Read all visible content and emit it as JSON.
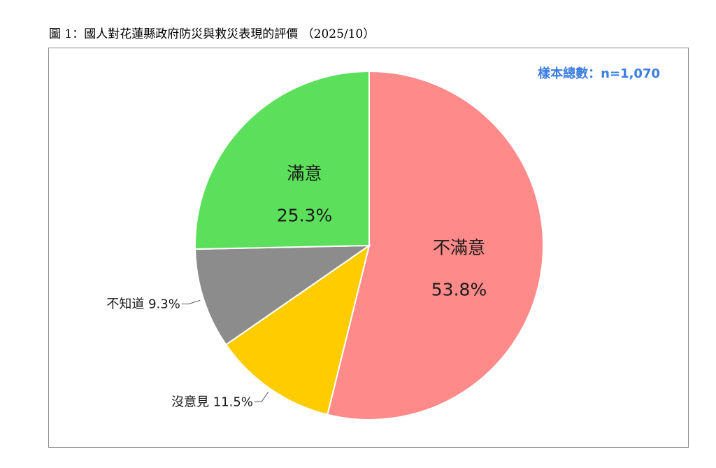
{
  "figure": {
    "title": "圖 1：國人對花蓮縣政府防災與救災表現的評價 （2025/10）",
    "sample_note": "樣本總數：n=1,070"
  },
  "colors": {
    "dissatisfied": "#ff8a8a",
    "no_opinion": "#ffcc00",
    "dont_know": "#8c8c8c",
    "satisfied": "#5ce05c",
    "sample_text": "#3b7de0"
  },
  "chart_data": {
    "type": "pie",
    "title": "",
    "slices": [
      {
        "label": "不滿意",
        "value": 53.8,
        "value_text": "53.8%",
        "color": "#ff8a8a",
        "label_style": "inside"
      },
      {
        "label": "沒意見",
        "value": 11.5,
        "value_text": "11.5%",
        "color": "#ffcc00",
        "label_style": "outside"
      },
      {
        "label": "不知道",
        "value": 9.3,
        "value_text": "9.3%",
        "color": "#8c8c8c",
        "label_style": "outside"
      },
      {
        "label": "滿意",
        "value": 25.3,
        "value_text": "25.3%",
        "color": "#5ce05c",
        "label_style": "inside"
      }
    ],
    "start_angle": "12 o'clock",
    "direction": "clockwise",
    "legend": "none"
  }
}
